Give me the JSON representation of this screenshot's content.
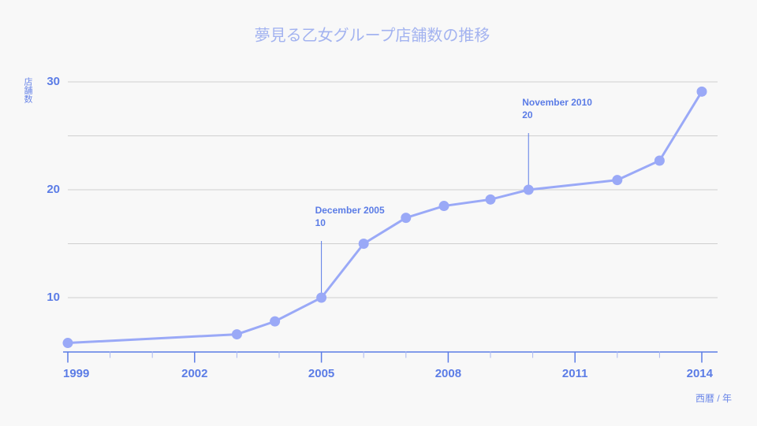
{
  "chart_data": {
    "type": "line",
    "title": "夢見る乙女グループ店舗数の推移",
    "y_label": "店舗数",
    "x_label": "西暦 / 年",
    "x": [
      1999.0,
      2003.0,
      2003.9,
      2005.0,
      2006.0,
      2007.0,
      2007.9,
      2009.0,
      2009.9,
      2012.0,
      2013.0,
      2014.0
    ],
    "series": [
      {
        "name": "店舗数",
        "color": "#9aa9f7",
        "values": [
          5.8,
          6.6,
          7.8,
          10,
          15,
          17.4,
          18.5,
          19.1,
          20,
          20.9,
          22.7,
          29.1
        ]
      }
    ],
    "xlim": [
      1999,
      2014
    ],
    "xticks": [
      1999,
      2002,
      2005,
      2008,
      2011,
      2014
    ],
    "minor_xticks": [
      2000,
      2001,
      2003,
      2004,
      2006,
      2007,
      2009,
      2010,
      2012,
      2013
    ],
    "ylim": [
      5,
      30
    ],
    "yticks": [
      10,
      20,
      30
    ],
    "minor_yticks": [
      15,
      25
    ],
    "grid": true,
    "annotations": [
      {
        "text": "December 2005",
        "x": 2005,
        "y": 10
      },
      {
        "text": "November 2010",
        "x": 2009.9,
        "y": 20
      }
    ]
  }
}
